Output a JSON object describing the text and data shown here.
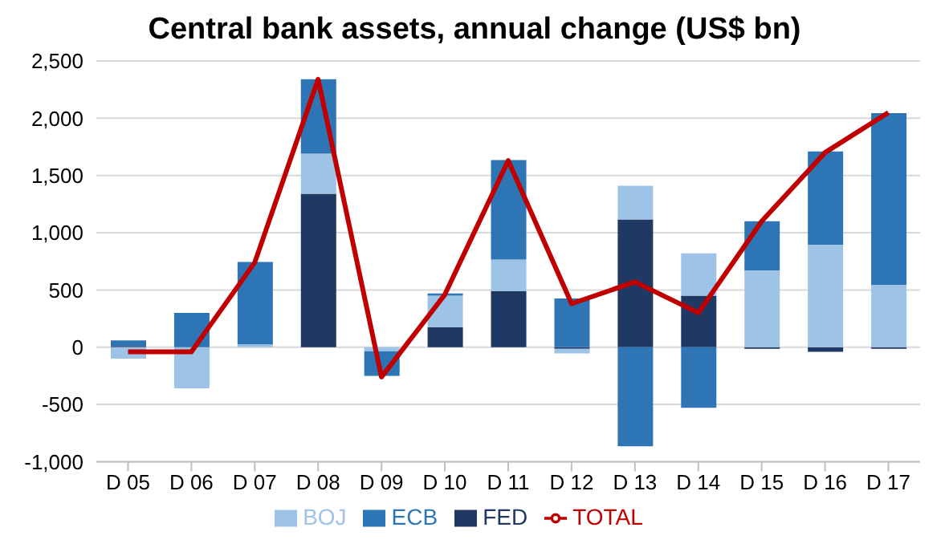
{
  "chart_data": {
    "type": "bar",
    "title": "Central bank assets, annual change (US$ bn)",
    "stacked": true,
    "categories": [
      "D 05",
      "D 06",
      "D 07",
      "D 08",
      "D 09",
      "D 10",
      "D 11",
      "D 12",
      "D 13",
      "D 14",
      "D 15",
      "D 16",
      "D 17"
    ],
    "series": [
      {
        "name": "FED",
        "color": "#203864",
        "values": [
          10,
          0,
          0,
          1340,
          0,
          175,
          490,
          -15,
          1115,
          450,
          -15,
          -40,
          -15
        ]
      },
      {
        "name": "BOJ",
        "color": "#9dc3e6",
        "values": [
          -100,
          -360,
          25,
          350,
          -35,
          275,
          275,
          -40,
          295,
          370,
          670,
          895,
          545
        ]
      },
      {
        "name": "ECB",
        "color": "#2e75b6",
        "values": [
          50,
          300,
          720,
          650,
          -215,
          20,
          870,
          425,
          -865,
          -530,
          430,
          815,
          1500
        ]
      },
      {
        "name": "TOTAL",
        "type": "line",
        "color": "#c00000",
        "marker": "none",
        "values": [
          -40,
          -40,
          740,
          2340,
          -260,
          460,
          1630,
          380,
          570,
          300,
          1100,
          1700,
          2050
        ]
      }
    ],
    "ylim": [
      -1000,
      2500
    ],
    "yticks": [
      {
        "value": -1000,
        "label": "-1,000"
      },
      {
        "value": -500,
        "label": "-500"
      },
      {
        "value": 0,
        "label": "0"
      },
      {
        "value": 500,
        "label": "500"
      },
      {
        "value": 1000,
        "label": "1,000"
      },
      {
        "value": 1500,
        "label": "1,500"
      },
      {
        "value": 2000,
        "label": "2,000"
      },
      {
        "value": 2500,
        "label": "2,500"
      }
    ],
    "grid": "y",
    "legend": "bottom"
  }
}
